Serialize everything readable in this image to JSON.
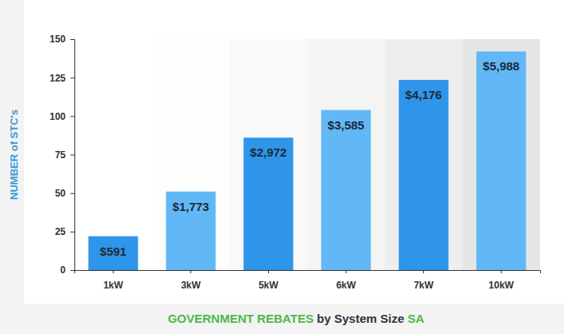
{
  "chart_data": {
    "type": "bar",
    "x_label": "GOVERNMENT REBATES by System Size SA",
    "y_label": "NUMBER of STC's",
    "categories": [
      "1kW",
      "3kW",
      "5kW",
      "6kW",
      "7kW",
      "10kW"
    ],
    "values": [
      22,
      51,
      86,
      104,
      123.5,
      142
    ],
    "annotations": [
      "$591",
      "$1,773",
      "$2,972",
      "$3,585",
      "$4,176",
      "$5,988"
    ],
    "colors": [
      "#2f95ea",
      "#62b8f6",
      "#2f95ea",
      "#62b8f6",
      "#2f95ea",
      "#62b8f6"
    ],
    "ylim": [
      0,
      150
    ],
    "yticks": [
      0,
      25,
      50,
      75,
      100,
      125,
      150
    ],
    "grid": false
  }
}
